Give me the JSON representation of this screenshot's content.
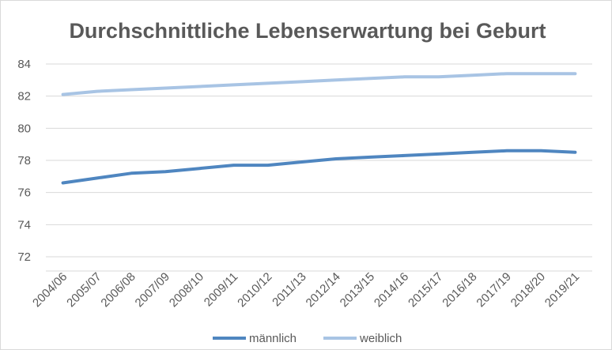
{
  "chart_data": {
    "type": "line",
    "title": "Durchschnittliche Lebenserwartung bei Geburt",
    "xlabel": "",
    "ylabel": "",
    "ylim": [
      72,
      84
    ],
    "yticks": [
      72,
      74,
      76,
      78,
      80,
      82,
      84
    ],
    "grid": true,
    "legend_position": "bottom",
    "categories": [
      "2004/06",
      "2005/07",
      "2006/08",
      "2007/09",
      "2008/10",
      "2009/11",
      "2010/12",
      "2011/13",
      "2012/14",
      "2013/15",
      "2014/16",
      "2015/17",
      "2016/18",
      "2017/19",
      "2018/20",
      "2019/21"
    ],
    "series": [
      {
        "name": "männlich",
        "color": "#4f86c0",
        "values": [
          76.6,
          76.9,
          77.2,
          77.3,
          77.5,
          77.7,
          77.7,
          77.9,
          78.1,
          78.2,
          78.3,
          78.4,
          78.5,
          78.6,
          78.6,
          78.5
        ]
      },
      {
        "name": "weiblich",
        "color": "#a8c4e4",
        "values": [
          82.1,
          82.3,
          82.4,
          82.5,
          82.6,
          82.7,
          82.8,
          82.9,
          83.0,
          83.1,
          83.2,
          83.2,
          83.3,
          83.4,
          83.4,
          83.4
        ]
      }
    ]
  }
}
